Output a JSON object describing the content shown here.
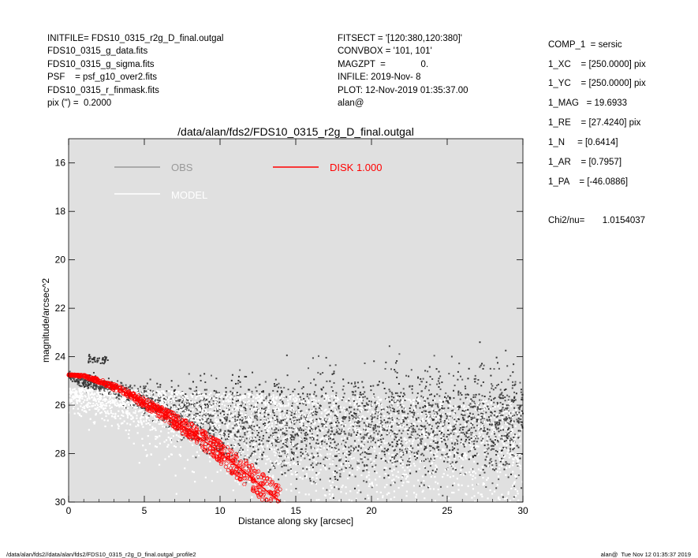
{
  "header_left": [
    "INITFILE= FDS10_0315_r2g_D_final.outgal",
    "FDS10_0315_g_data.fits",
    "FDS10_0315_g_sigma.fits",
    "PSF    = psf_g10_over2.fits",
    "FDS10_0315_r_finmask.fits",
    "pix (\") =  0.2000"
  ],
  "header_mid": [
    "FITSECT = '[120:380,120:380]'",
    "CONVBOX = '101, 101'",
    "MAGZPT  =              0.",
    "INFILE: 2019-Nov- 8",
    "PLOT: 12-Nov-2019 01:35:37.00",
    "alan@"
  ],
  "components": [
    "COMP_1  = sersic",
    "1_XC    = [250.0000] pix",
    "1_YC    = [250.0000] pix",
    "1_MAG   = 19.6933",
    "1_RE    = [27.4240] pix",
    "1_N     = [0.6414]",
    "1_AR    = [0.7957]",
    "1_PA    = [-46.0886]"
  ],
  "chi2": "Chi2/nu=       1.0154037",
  "footer_left": "/data/alan/fds2//data/alan/fds2/FDS10_0315_r2g_D_final.outgal_profile2",
  "footer_right": "alan@  Tue Nov 12 01:35:37 2019",
  "chart_data": {
    "type": "scatter",
    "title": "/data/alan/fds2/FDS10_0315_r2g_D_final.outgal",
    "xlabel": "Distance along sky [arcsec]",
    "ylabel": "magnitude/arcsec^2",
    "xlim": [
      0,
      30
    ],
    "ylim": [
      30,
      15
    ],
    "y_inverted": true,
    "xticks": [
      0,
      5,
      10,
      15,
      20,
      25,
      30
    ],
    "yticks": [
      16,
      18,
      20,
      22,
      24,
      26,
      28,
      30
    ],
    "grid": false,
    "background": "#e0e0e0",
    "legend": [
      {
        "label": "OBS",
        "color": "#999999"
      },
      {
        "label": "MODEL",
        "color": "#ffffff"
      },
      {
        "label": "DISK  1.000",
        "color": "#ff0000"
      }
    ],
    "legend_placement": "top",
    "series": [
      {
        "name": "OBS",
        "color": "#444444",
        "description_points": [
          [
            0.0,
            24.8
          ],
          [
            2.0,
            25.2
          ],
          [
            4.0,
            25.6
          ],
          [
            6.0,
            26.0
          ],
          [
            8.0,
            26.4
          ],
          [
            10.0,
            26.7
          ],
          [
            15.0,
            26.9
          ],
          [
            20.0,
            26.9
          ],
          [
            25.0,
            26.8
          ],
          [
            30.0,
            26.8
          ]
        ],
        "scatter_sigma": [
          0.1,
          0.15,
          0.25,
          0.4,
          0.6,
          0.8,
          1.0,
          1.1,
          1.1,
          1.1
        ]
      },
      {
        "name": "MODEL",
        "color": "#ffffff",
        "description_points": [
          [
            0.0,
            24.75
          ],
          [
            2.0,
            25.1
          ],
          [
            4.0,
            25.55
          ],
          [
            6.0,
            26.0
          ],
          [
            8.0,
            26.5
          ],
          [
            10.0,
            27.1
          ],
          [
            12.0,
            27.8
          ],
          [
            14.0,
            28.6
          ],
          [
            16.0,
            29.4
          ],
          [
            17.0,
            29.9
          ]
        ]
      },
      {
        "name": "DISK  1.000",
        "color": "#ff0000",
        "points": [
          [
            0.0,
            24.75
          ],
          [
            1.0,
            24.8
          ],
          [
            2.0,
            25.0
          ],
          [
            3.0,
            25.25
          ],
          [
            4.0,
            25.55
          ],
          [
            5.0,
            25.9
          ],
          [
            6.0,
            26.25
          ],
          [
            7.0,
            26.65
          ],
          [
            8.0,
            27.05
          ],
          [
            9.0,
            27.5
          ],
          [
            10.0,
            27.95
          ],
          [
            11.0,
            28.45
          ],
          [
            12.0,
            28.95
          ],
          [
            13.0,
            29.5
          ],
          [
            14.0,
            30.0
          ]
        ],
        "spread": [
          0.02,
          0.05,
          0.08,
          0.12,
          0.15,
          0.2,
          0.25,
          0.3,
          0.35,
          0.4,
          0.45,
          0.5,
          0.55,
          0.6,
          0.65
        ]
      }
    ]
  }
}
